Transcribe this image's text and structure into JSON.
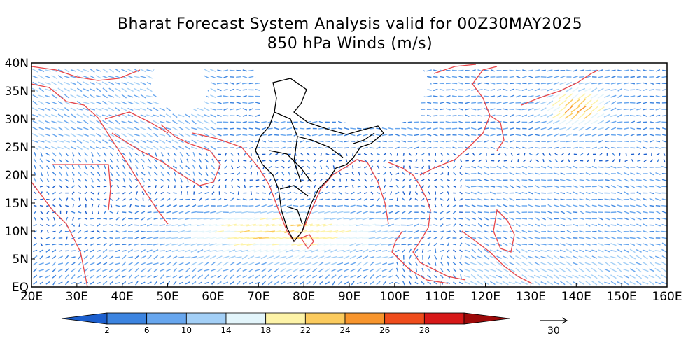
{
  "title": "Bharat Forecast System Analysis valid for 00Z30MAY2025",
  "subtitle": "850 hPa Winds (m/s)",
  "axes": {
    "lon_min": 20,
    "lon_max": 160,
    "lat_min": 0,
    "lat_max": 40,
    "lon_ticks": [
      "20E",
      "30E",
      "40E",
      "50E",
      "60E",
      "70E",
      "80E",
      "90E",
      "100E",
      "110E",
      "120E",
      "130E",
      "140E",
      "150E",
      "160E"
    ],
    "lat_ticks": [
      "EQ",
      "5N",
      "10N",
      "15N",
      "20N",
      "25N",
      "30N",
      "35N",
      "40N"
    ]
  },
  "colorbar": {
    "labels": [
      "2",
      "6",
      "10",
      "14",
      "18",
      "22",
      "24",
      "26",
      "28"
    ],
    "colors": [
      "#1c5fce",
      "#3c84e0",
      "#67a6ee",
      "#a3cff6",
      "#e3f5fb",
      "#fdf3a8",
      "#fbcb5e",
      "#f7952d",
      "#ef4c1c",
      "#d71818",
      "#9d0a0a"
    ]
  },
  "reference_vector": {
    "label": "30"
  },
  "colors": {
    "coast": "#e8474a",
    "india": "#000000",
    "masked_land": "#ffffff"
  }
}
